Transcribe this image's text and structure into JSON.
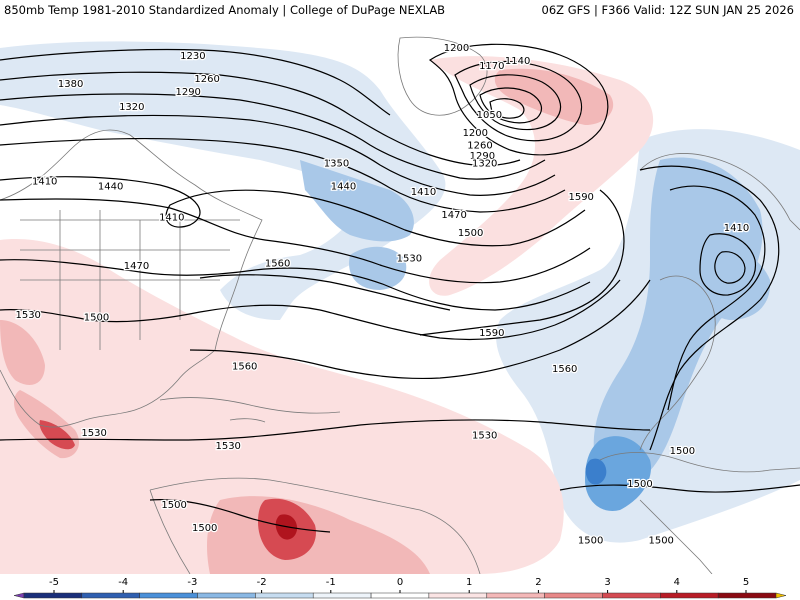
{
  "header": {
    "left_title": "850mb Temp 1981-2010 Standardized Anomaly | College of DuPage NEXLAB",
    "right_title": "06Z GFS | F366 Valid: 12Z SUN JAN 25 2026"
  },
  "colors": {
    "strong_warm": "#b0141e",
    "warm": "#d64a52",
    "mild_warm": "#f2b8b8",
    "slight_warm": "#fbe0e0",
    "slight_cold": "#dde8f4",
    "mild_cold": "#a9c8e8",
    "cold": "#6aa6de",
    "strong_cold": "#3b7fcc",
    "contour": "#000000",
    "borders": "#7a7a7a"
  },
  "contour_labels": [
    {
      "text": "1200",
      "lon": -43.0,
      "lat": 62.5
    },
    {
      "text": "1230",
      "lon": -99.0,
      "lat": 61.0
    },
    {
      "text": "1140",
      "lon": -30.0,
      "lat": 60.0
    },
    {
      "text": "1170",
      "lon": -35.5,
      "lat": 59.0
    },
    {
      "text": "1380",
      "lon": -125.0,
      "lat": 55.5
    },
    {
      "text": "1260",
      "lon": -96.0,
      "lat": 56.5
    },
    {
      "text": "1290",
      "lon": -100.0,
      "lat": 54.0
    },
    {
      "text": "1320",
      "lon": -112.0,
      "lat": 51.0
    },
    {
      "text": "1050",
      "lon": -36.0,
      "lat": 49.5
    },
    {
      "text": "1200",
      "lon": -39.0,
      "lat": 46.0
    },
    {
      "text": "1260",
      "lon": -38.0,
      "lat": 43.5
    },
    {
      "text": "1290",
      "lon": -37.5,
      "lat": 41.5
    },
    {
      "text": "1320",
      "lon": -37.0,
      "lat": 40.0
    },
    {
      "text": "1350",
      "lon": -68.5,
      "lat": 40.0
    },
    {
      "text": "1410",
      "lon": -130.5,
      "lat": 36.5
    },
    {
      "text": "1440",
      "lon": -116.5,
      "lat": 35.5
    },
    {
      "text": "1440",
      "lon": -67.0,
      "lat": 35.5
    },
    {
      "text": "1410",
      "lon": -50.0,
      "lat": 34.5
    },
    {
      "text": "1410",
      "lon": -103.5,
      "lat": 29.5
    },
    {
      "text": "1470",
      "lon": -43.5,
      "lat": 30.0
    },
    {
      "text": "1590",
      "lon": -16.5,
      "lat": 33.5
    },
    {
      "text": "1500",
      "lon": -40.0,
      "lat": 26.5
    },
    {
      "text": "1410",
      "lon": 16.5,
      "lat": 27.5
    },
    {
      "text": "1470",
      "lon": -111.0,
      "lat": 20.0
    },
    {
      "text": "1560",
      "lon": -81.0,
      "lat": 20.5
    },
    {
      "text": "1530",
      "lon": -53.0,
      "lat": 21.5
    },
    {
      "text": "1530",
      "lon": -134.0,
      "lat": 10.5
    },
    {
      "text": "1500",
      "lon": -119.5,
      "lat": 10.0
    },
    {
      "text": "1590",
      "lon": -35.5,
      "lat": 7.0
    },
    {
      "text": "1560",
      "lon": -88.0,
      "lat": 0.5
    },
    {
      "text": "1560",
      "lon": -20.0,
      "lat": 0.0
    },
    {
      "text": "1530",
      "lon": -120.0,
      "lat": -12.5
    },
    {
      "text": "1530",
      "lon": -91.5,
      "lat": -15.0
    },
    {
      "text": "1530",
      "lon": -37.0,
      "lat": -13.0
    },
    {
      "text": "1500",
      "lon": 5.0,
      "lat": -16.0
    },
    {
      "text": "1500",
      "lon": -4.0,
      "lat": -22.5
    },
    {
      "text": "1500",
      "lon": -103.0,
      "lat": -26.5
    },
    {
      "text": "1500",
      "lon": -96.5,
      "lat": -31.0
    },
    {
      "text": "1500",
      "lon": -14.5,
      "lat": -33.5
    },
    {
      "text": "1500",
      "lon": 0.5,
      "lat": -33.5
    }
  ],
  "colorbar": {
    "ticks": [
      "-5",
      "-4",
      "-3",
      "-2",
      "-1",
      "0",
      "1",
      "2",
      "3",
      "4",
      "5"
    ],
    "fill_colors": [
      "#7a3fb0",
      "#1a2f7a",
      "#2f5fb0",
      "#4a90d9",
      "#8ab8e4",
      "#c6dcf0",
      "#eef4fa",
      "#ffffff",
      "#fbe4e4",
      "#f4b8b8",
      "#e88888",
      "#d44a52",
      "#b81c26",
      "#8a0a12",
      "#f2c000"
    ]
  }
}
